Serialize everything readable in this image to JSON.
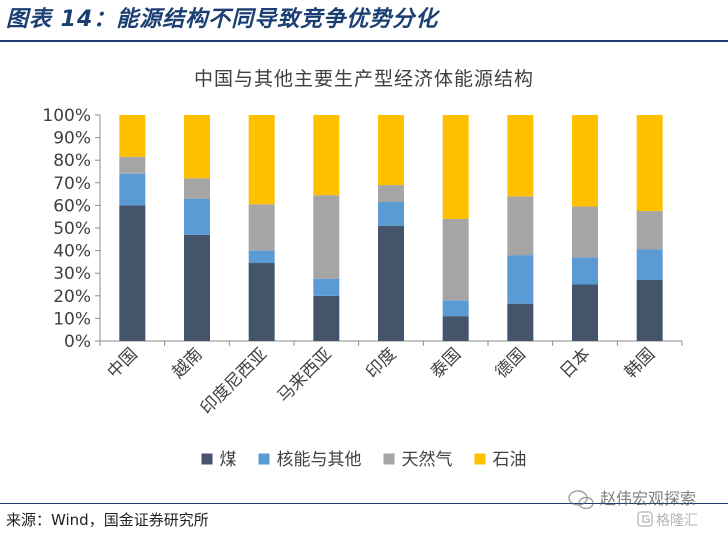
{
  "figure_title": "图表 14：能源结构不同导致竞争优势分化",
  "source": "来源：Wind，国金证券研究所",
  "watermark": {
    "line1": "赵伟宏观探索",
    "line2": "格隆汇"
  },
  "chart_data": {
    "type": "bar",
    "stacked": true,
    "percent": true,
    "title": "中国与其他主要生产型经济体能源结构",
    "categories": [
      "中国",
      "越南",
      "印度尼西亚",
      "马来西亚",
      "印度",
      "泰国",
      "德国",
      "日本",
      "韩国"
    ],
    "series": [
      {
        "name": "煤",
        "color": "#44546a",
        "values": [
          60,
          47,
          34.5,
          20,
          51,
          11,
          16.5,
          25,
          27
        ]
      },
      {
        "name": "核能与其他",
        "color": "#5b9bd5",
        "values": [
          14,
          16,
          5.5,
          7.5,
          10.5,
          7,
          21.5,
          12,
          13.5
        ]
      },
      {
        "name": "天然气",
        "color": "#a5a5a5",
        "values": [
          7.5,
          9,
          20.5,
          37,
          7.5,
          36,
          26,
          22.5,
          17
        ]
      },
      {
        "name": "石油",
        "color": "#ffc000",
        "values": [
          18.5,
          28,
          39.5,
          35.5,
          31,
          46,
          36,
          40.5,
          42.5
        ]
      }
    ],
    "yticks": [
      "0%",
      "10%",
      "20%",
      "30%",
      "40%",
      "50%",
      "60%",
      "70%",
      "80%",
      "90%",
      "100%"
    ],
    "ylim": [
      0,
      100
    ],
    "legend_position": "bottom",
    "grid": false
  }
}
